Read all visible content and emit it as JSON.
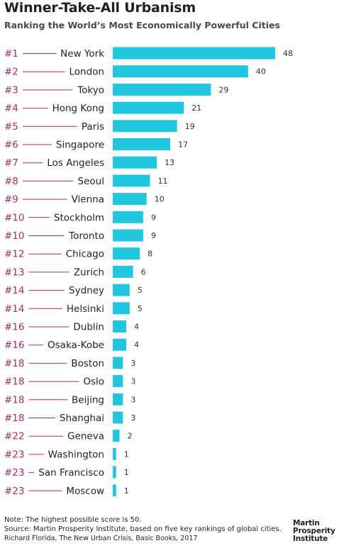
{
  "header": {
    "title": "Winner-Take-All Urbanism",
    "subtitle": "Ranking the World’s Most Economically Powerful Cities"
  },
  "chart_data": {
    "type": "bar",
    "orientation": "horizontal",
    "ranks": [
      "#1",
      "#2",
      "#3",
      "#4",
      "#5",
      "#6",
      "#7",
      "#8",
      "#9",
      "#10",
      "#10",
      "#12",
      "#13",
      "#14",
      "#14",
      "#16",
      "#16",
      "#18",
      "#18",
      "#18",
      "#18",
      "#22",
      "#23",
      "#23",
      "#23"
    ],
    "categories": [
      "New York",
      "London",
      "Tokyo",
      "Hong Kong",
      "Paris",
      "Singapore",
      "Los Angeles",
      "Seoul",
      "Vienna",
      "Stockholm",
      "Toronto",
      "Chicago",
      "Zurich",
      "Sydney",
      "Helsinki",
      "Dublin",
      "Osaka-Kobe",
      "Boston",
      "Oslo",
      "Beijing",
      "Shanghai",
      "Geneva",
      "Washington",
      "San Francisco",
      "Moscow"
    ],
    "values": [
      48,
      40,
      29,
      21,
      19,
      17,
      13,
      11,
      10,
      9,
      9,
      8,
      6,
      5,
      5,
      4,
      4,
      3,
      3,
      3,
      3,
      2,
      1,
      1,
      1
    ],
    "xlim": [
      0,
      48
    ],
    "grid": false,
    "colors": {
      "bar": "#23c6e1",
      "rank": "#a0306a",
      "connector": "#a0306a"
    }
  },
  "footer": {
    "note": "Note: The highest possible score is 50.",
    "source": "Source: Martin Prosperity Institute, based on five key rankings of global cities.",
    "citation": "Richard Florida, The New Urban Crisis, Basic Books, 2017",
    "logo_lines": [
      "Martin",
      "Prosperity",
      "Institute"
    ]
  }
}
